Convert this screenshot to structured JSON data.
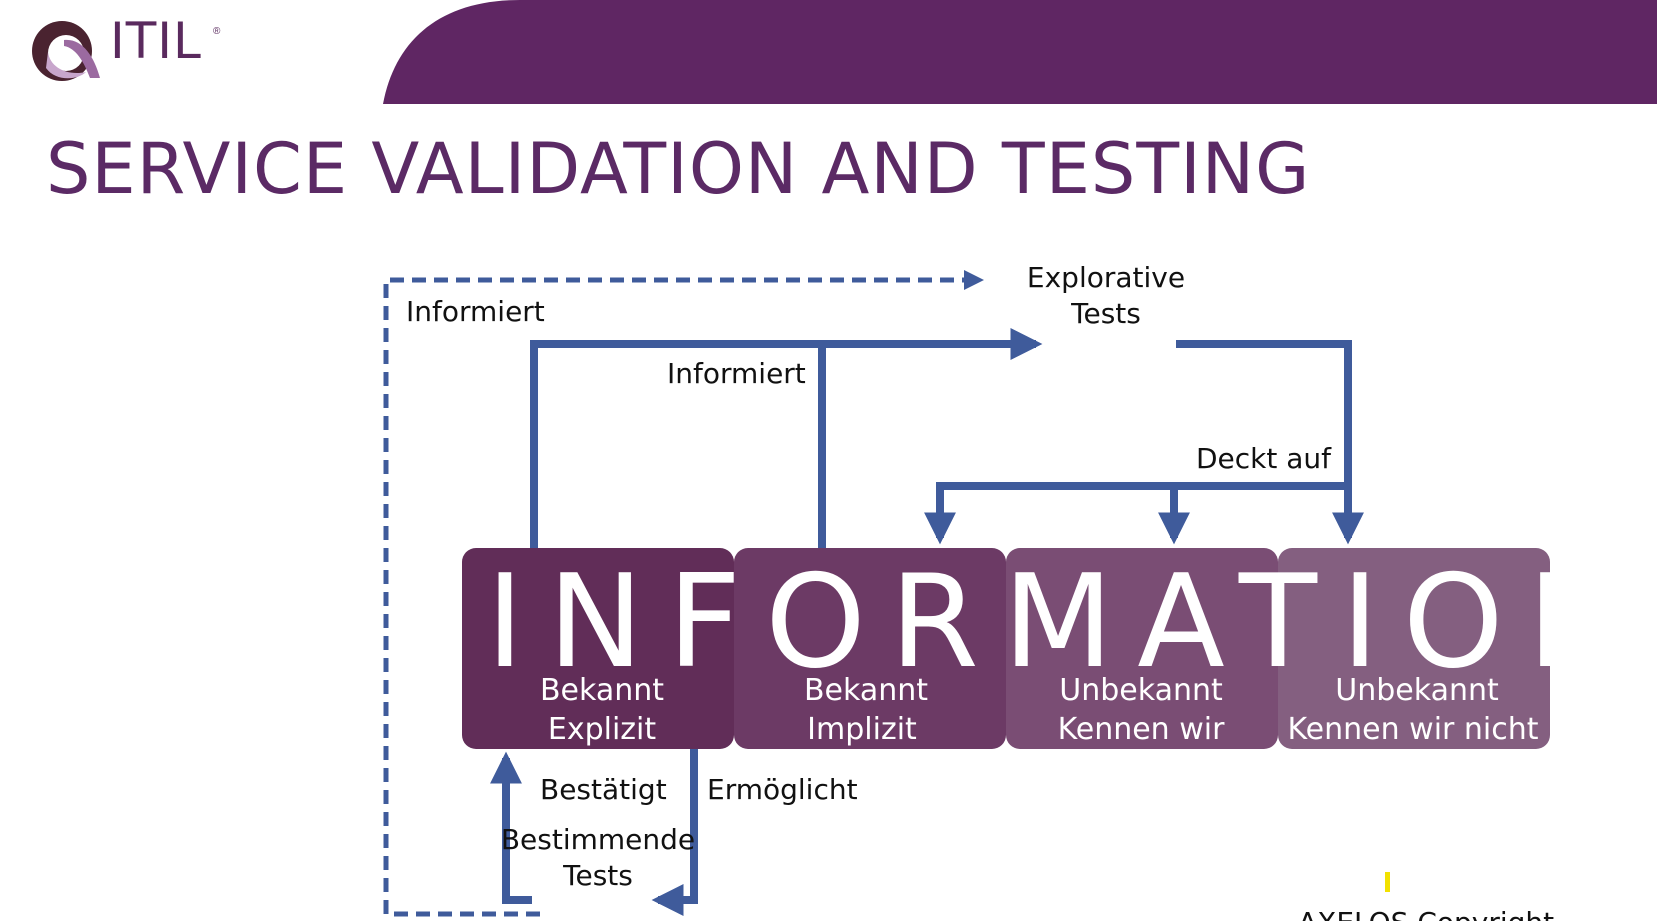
{
  "logo": {
    "text": "ITIL",
    "mark": "®"
  },
  "title": "SERVICE VALIDATION AND TESTING",
  "diagram": {
    "big_word": "INFORMATION",
    "top_target": [
      "Explorative",
      "Tests"
    ],
    "informiert_outer": "Informiert",
    "informiert_inner": "Informiert",
    "deckt_auf": "Deckt auf",
    "bestaetigt": "Bestätigt",
    "ermoeglicht": "Ermöglicht",
    "bottom_source": [
      "Bestimmende",
      "Tests"
    ],
    "boxes": [
      {
        "line1": "Bekannt",
        "line2": "Explizit",
        "color": "#612d58"
      },
      {
        "line1": "Bekannt",
        "line2": "Implizit",
        "color": "#6c3a65"
      },
      {
        "line1": "Unbekannt",
        "line2": "Kennen wir",
        "color": "#7a4d74"
      },
      {
        "line1": "Unbekannt",
        "line2": "Kennen wir nicht",
        "color": "#845f80"
      }
    ]
  },
  "footer": {
    "partial_text": "AXELOS Copyright"
  },
  "colors": {
    "purple": "#5f2663",
    "arrow": "#3f5b9b",
    "cursor_mark": "#f2e100"
  }
}
